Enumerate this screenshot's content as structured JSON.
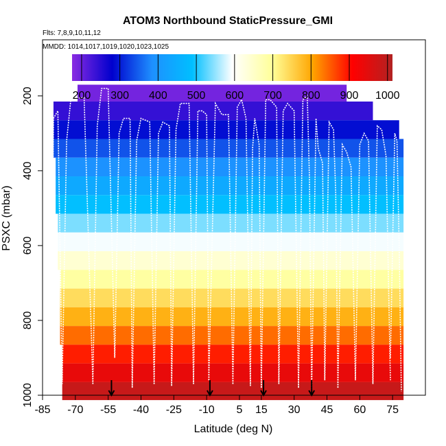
{
  "chart_data": {
    "type": "heatmap",
    "title": "ATOM3 Northbound StaticPressure_GMI",
    "flights_label": "Flts: 7,8,9,10,11,12",
    "mmdd_label": "MMDD: 1014,1017,1019,1020,1023,1025",
    "xlabel": "Latitude (deg N)",
    "ylabel": "PSXC (mbar)",
    "xlim": [
      -85,
      90
    ],
    "ylim": [
      1000,
      50
    ],
    "x_ticks": [
      -85,
      -70,
      -55,
      -40,
      -25,
      -10,
      5,
      15,
      30,
      45,
      60,
      75
    ],
    "y_ticks": [
      200,
      400,
      600,
      800,
      1000
    ],
    "colorbar": {
      "range": [
        175,
        1013
      ],
      "ticks": [
        200,
        300,
        400,
        500,
        600,
        700,
        800,
        900,
        1000
      ],
      "colors": [
        "#8a2be2",
        "#0000cd",
        "#1e90ff",
        "#00bfff",
        "#ffffff",
        "#ffff99",
        "#ffa500",
        "#ff0000",
        "#b22222"
      ]
    },
    "bands": [
      {
        "p_top": 170,
        "p_bot": 215,
        "value": 192,
        "lat_min": -69,
        "lat_max": 54
      },
      {
        "p_top": 215,
        "p_bot": 265,
        "value": 240,
        "lat_min": -80,
        "lat_max": 66
      },
      {
        "p_top": 265,
        "p_bot": 315,
        "value": 290,
        "lat_min": -80,
        "lat_max": 78
      },
      {
        "p_top": 315,
        "p_bot": 365,
        "value": 340,
        "lat_min": -80,
        "lat_max": 80
      },
      {
        "p_top": 365,
        "p_bot": 415,
        "value": 390,
        "lat_min": -79,
        "lat_max": 80
      },
      {
        "p_top": 415,
        "p_bot": 465,
        "value": 440,
        "lat_min": -79,
        "lat_max": 80
      },
      {
        "p_top": 465,
        "p_bot": 515,
        "value": 490,
        "lat_min": -79,
        "lat_max": 80
      },
      {
        "p_top": 515,
        "p_bot": 565,
        "value": 540,
        "lat_min": -78,
        "lat_max": 80
      },
      {
        "p_top": 565,
        "p_bot": 615,
        "value": 590,
        "lat_min": -78,
        "lat_max": 80
      },
      {
        "p_top": 615,
        "p_bot": 665,
        "value": 640,
        "lat_min": -78,
        "lat_max": 80
      },
      {
        "p_top": 665,
        "p_bot": 715,
        "value": 690,
        "lat_min": -77,
        "lat_max": 80
      },
      {
        "p_top": 715,
        "p_bot": 765,
        "value": 740,
        "lat_min": -77,
        "lat_max": 80
      },
      {
        "p_top": 765,
        "p_bot": 815,
        "value": 790,
        "lat_min": -77,
        "lat_max": 80
      },
      {
        "p_top": 815,
        "p_bot": 865,
        "value": 840,
        "lat_min": -77,
        "lat_max": 80
      },
      {
        "p_top": 865,
        "p_bot": 915,
        "value": 890,
        "lat_min": -76,
        "lat_max": 80
      },
      {
        "p_top": 915,
        "p_bot": 965,
        "value": 940,
        "lat_min": -76,
        "lat_max": 80
      },
      {
        "p_top": 965,
        "p_bot": 1013,
        "value": 985,
        "lat_min": -76,
        "lat_max": 80
      }
    ],
    "flight_profiles": [
      {
        "lat": [
          -81,
          -80,
          -78,
          -77,
          -76
        ],
        "p": [
          960,
          260,
          240,
          600,
          970
        ]
      },
      {
        "lat": [
          -76,
          -74,
          -72,
          -66,
          -62
        ],
        "p": [
          960,
          320,
          205,
          205,
          970
        ]
      },
      {
        "lat": [
          -62,
          -60,
          -58,
          -55,
          -52
        ],
        "p": [
          970,
          280,
          180,
          180,
          900
        ]
      },
      {
        "lat": [
          -52,
          -50,
          -48,
          -45,
          -44
        ],
        "p": [
          900,
          300,
          260,
          260,
          980
        ]
      },
      {
        "lat": [
          -44,
          -42,
          -40,
          -36,
          -34
        ],
        "p": [
          980,
          320,
          260,
          270,
          970
        ]
      },
      {
        "lat": [
          -34,
          -32,
          -30,
          -27,
          -26
        ],
        "p": [
          970,
          300,
          270,
          280,
          975
        ]
      },
      {
        "lat": [
          -26,
          -24,
          -22,
          -18,
          -16
        ],
        "p": [
          975,
          290,
          220,
          220,
          970
        ]
      },
      {
        "lat": [
          -16,
          -14,
          -12,
          -10,
          -9
        ],
        "p": [
          970,
          240,
          240,
          250,
          960
        ]
      },
      {
        "lat": [
          -9,
          -6,
          -3,
          0,
          2
        ],
        "p": [
          960,
          220,
          250,
          250,
          970
        ]
      },
      {
        "lat": [
          2,
          4,
          6,
          8,
          10
        ],
        "p": [
          970,
          230,
          210,
          260,
          975
        ]
      },
      {
        "lat": [
          10,
          11,
          12,
          14,
          15
        ],
        "p": [
          975,
          340,
          260,
          330,
          980
        ]
      },
      {
        "lat": [
          15,
          17,
          19,
          22,
          23
        ],
        "p": [
          980,
          210,
          210,
          230,
          970
        ]
      },
      {
        "lat": [
          23,
          25,
          27,
          30,
          32
        ],
        "p": [
          970,
          240,
          220,
          240,
          980
        ]
      },
      {
        "lat": [
          32,
          34,
          36,
          37,
          38
        ],
        "p": [
          980,
          210,
          200,
          420,
          990
        ]
      },
      {
        "lat": [
          38,
          40,
          41,
          43,
          44
        ],
        "p": [
          990,
          260,
          340,
          380,
          960
        ]
      },
      {
        "lat": [
          44,
          46,
          48,
          49,
          50
        ],
        "p": [
          960,
          270,
          290,
          460,
          980
        ]
      },
      {
        "lat": [
          50,
          52,
          54,
          56,
          58
        ],
        "p": [
          980,
          330,
          350,
          390,
          960
        ]
      },
      {
        "lat": [
          58,
          60,
          62,
          64,
          66
        ],
        "p": [
          960,
          330,
          300,
          320,
          970
        ]
      },
      {
        "lat": [
          66,
          68,
          70,
          72,
          74
        ],
        "p": [
          970,
          280,
          290,
          360,
          960
        ]
      },
      {
        "lat": [
          74,
          76,
          77,
          78,
          79
        ],
        "p": [
          900,
          300,
          320,
          600,
          990
        ]
      }
    ],
    "markers": [
      {
        "lat": -53.5,
        "p": 1000
      },
      {
        "lat": -8.5,
        "p": 1000
      },
      {
        "lat": 16,
        "p": 1000
      },
      {
        "lat": 38,
        "p": 1000
      }
    ]
  }
}
